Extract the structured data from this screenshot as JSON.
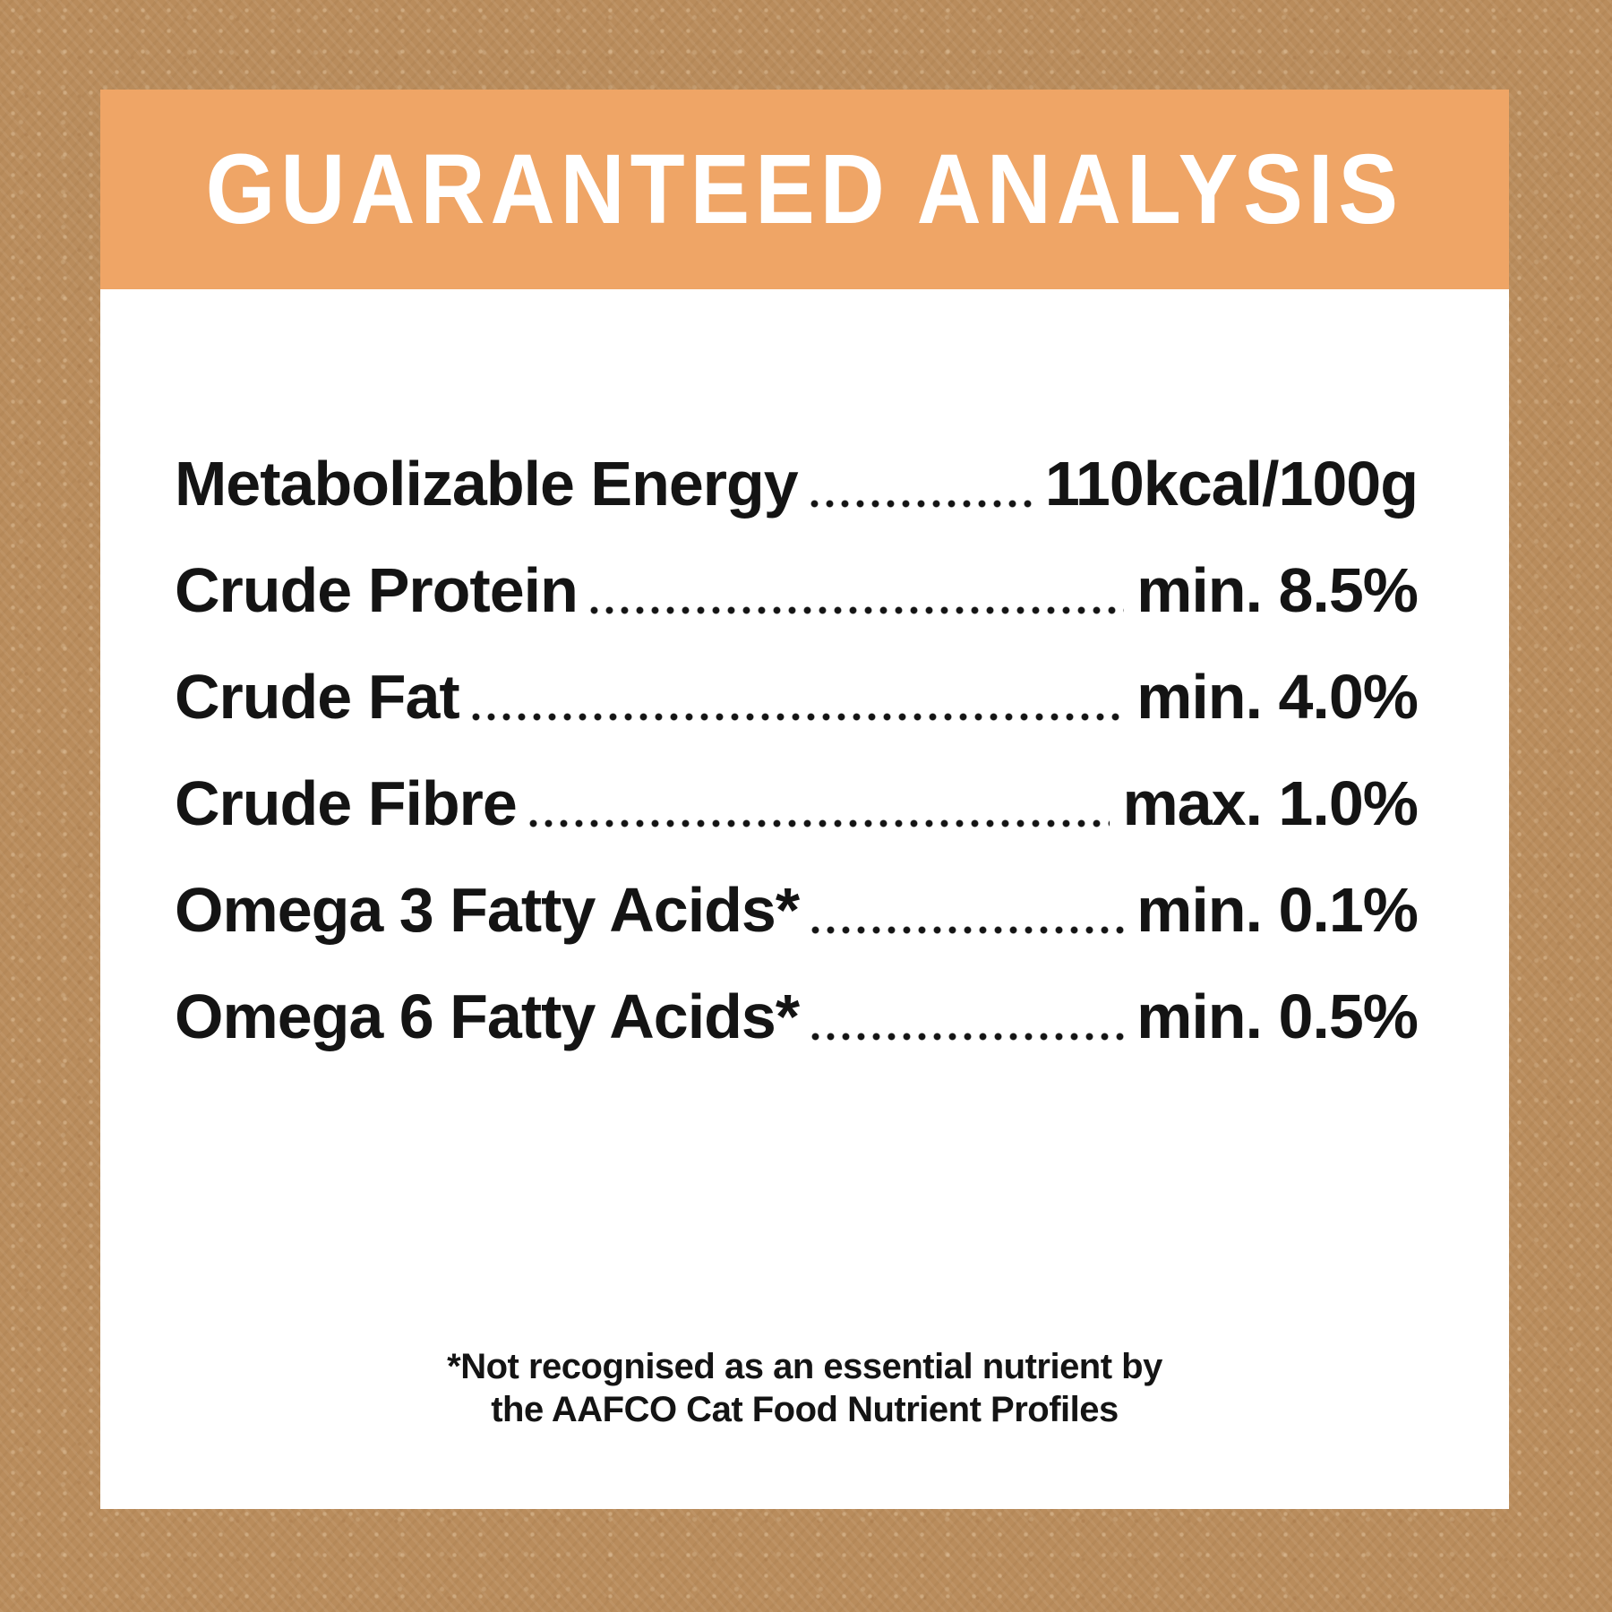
{
  "header": {
    "title": "GUARANTEED ANALYSIS"
  },
  "rows": [
    {
      "label": "Metabolizable Energy",
      "value": "110kcal/100g"
    },
    {
      "label": "Crude Protein",
      "value": "min. 8.5%"
    },
    {
      "label": "Crude Fat",
      "value": "min. 4.0%"
    },
    {
      "label": "Crude Fibre",
      "value": "max. 1.0%"
    },
    {
      "label": "Omega 3 Fatty Acids*",
      "value": "min. 0.1%"
    },
    {
      "label": "Omega 6 Fatty Acids*",
      "value": "min. 0.5%"
    }
  ],
  "footnote": {
    "line1": "*Not recognised as an essential nutrient by",
    "line2": "the AAFCO Cat Food Nutrient Profiles"
  },
  "colors": {
    "background": "#B98C5C",
    "card": "#FFFFFF",
    "header_bg": "#EFA566",
    "header_text": "#FFFFFF",
    "text": "#141414"
  }
}
